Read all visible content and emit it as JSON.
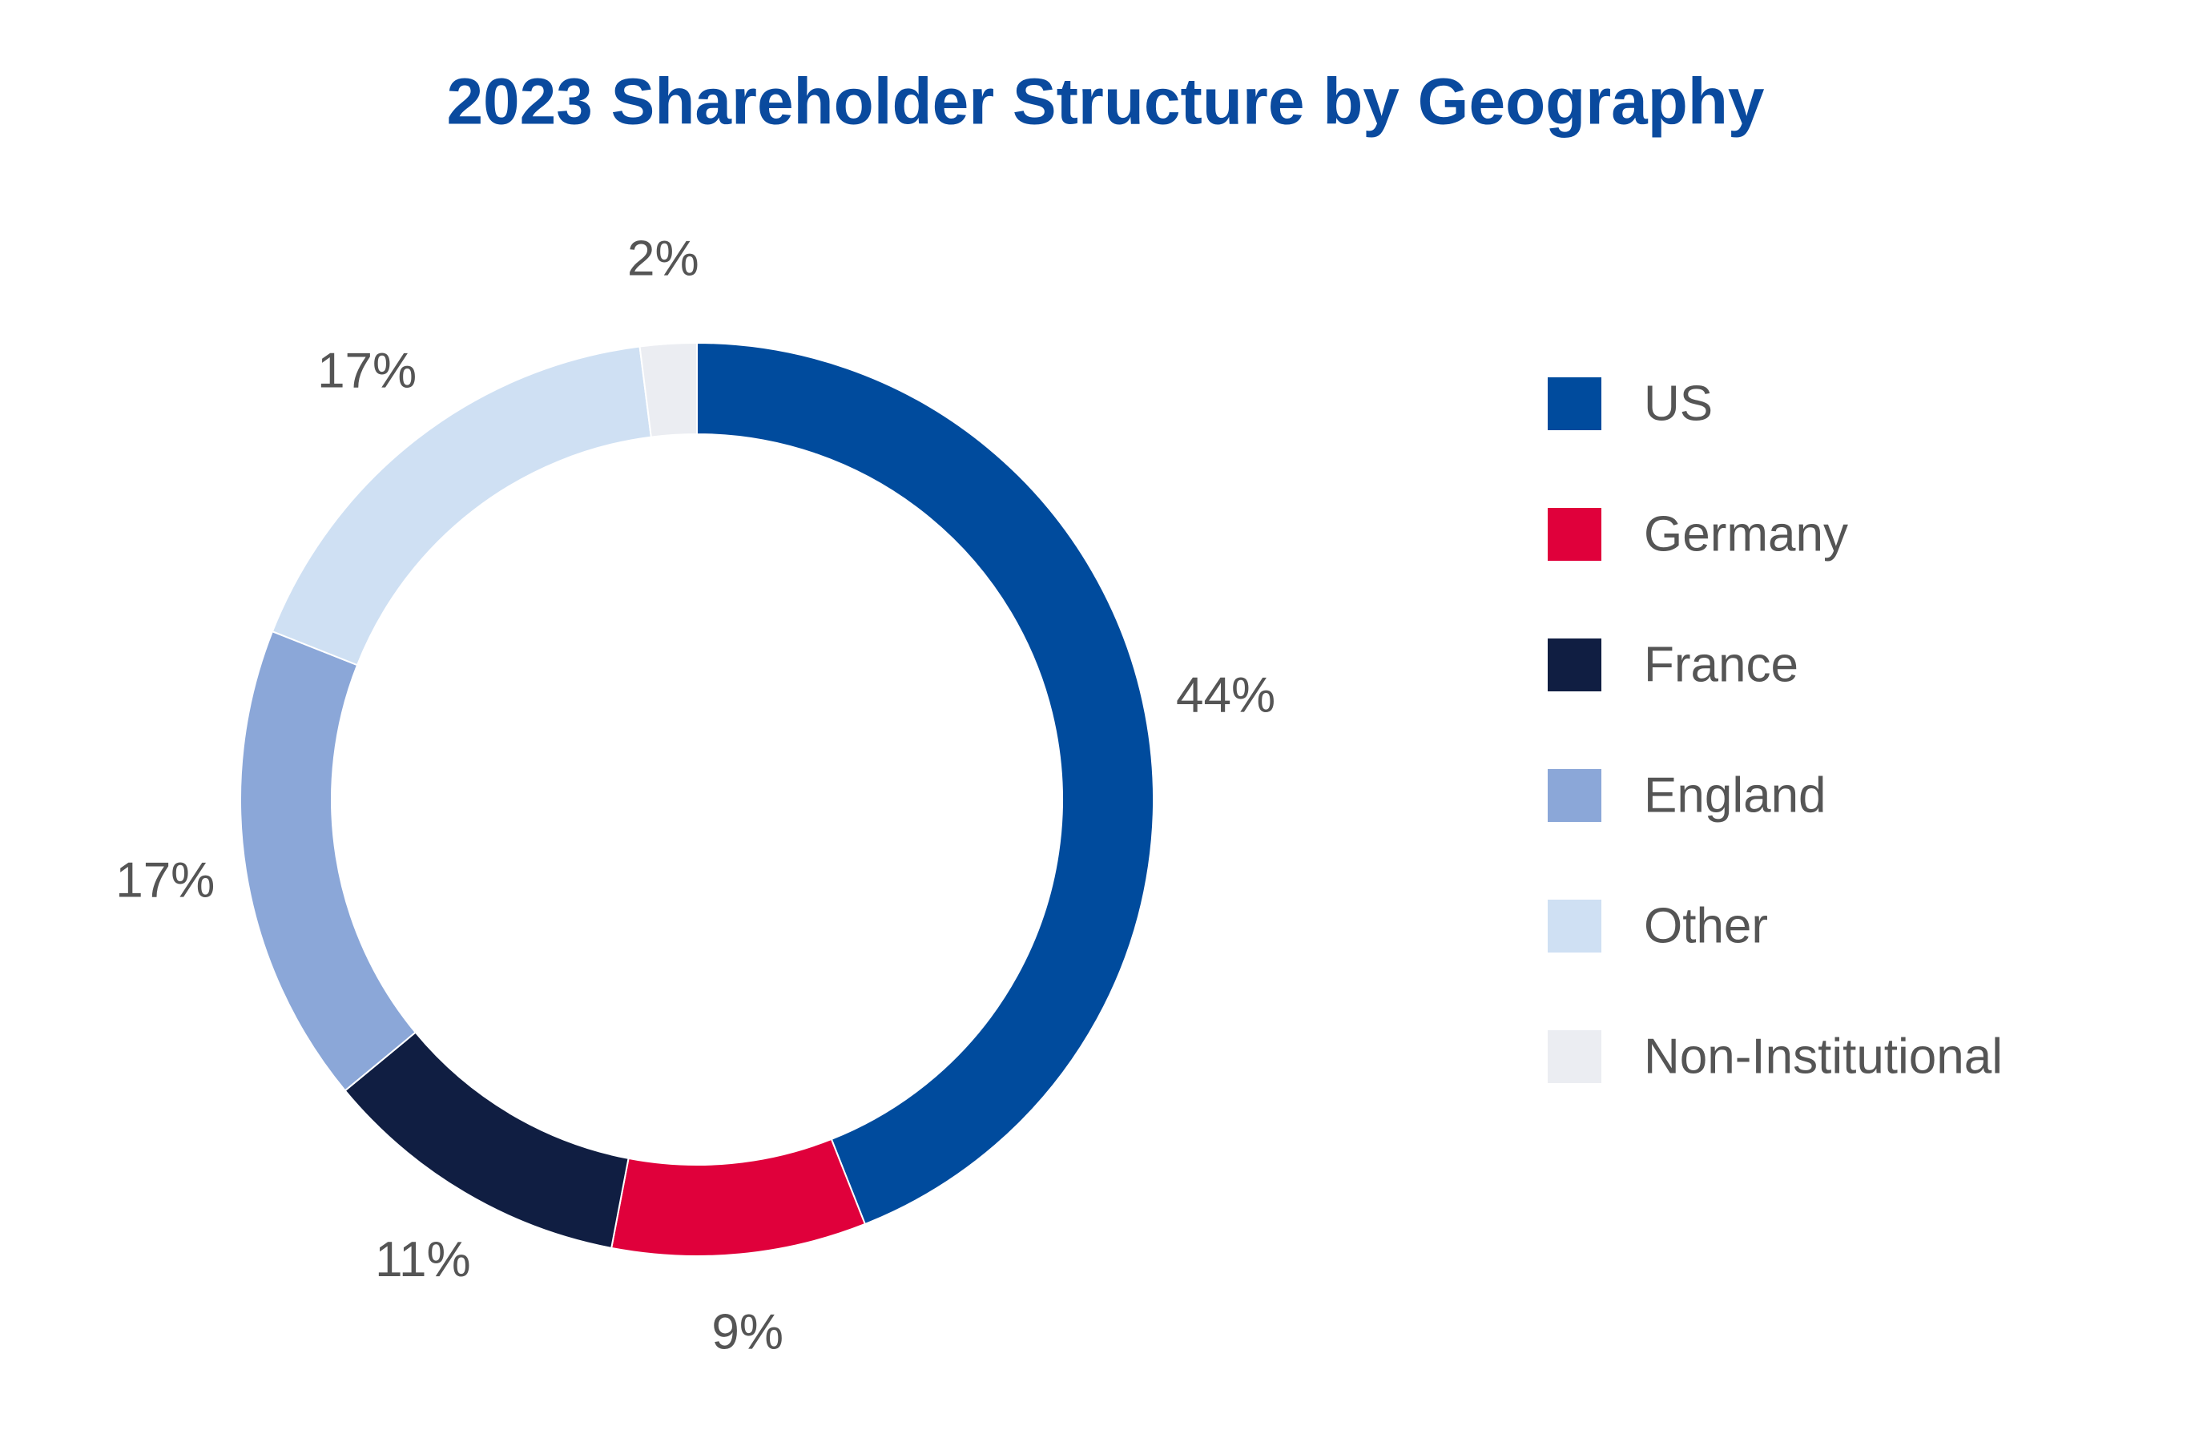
{
  "chart_data": {
    "type": "donut",
    "title": "2023 Shareholder Structure by Geography",
    "categories": [
      "US",
      "Germany",
      "France",
      "England",
      "Other",
      "Non-Institutional"
    ],
    "values": [
      44,
      9,
      11,
      17,
      17,
      2
    ],
    "value_labels": [
      "44%",
      "9%",
      "11%",
      "17%",
      "17%",
      "2%"
    ],
    "colors": [
      "#004b9d",
      "#e0003b",
      "#101e42",
      "#8ba7d8",
      "#cfe0f3",
      "#ebedf2"
    ],
    "legend": "right"
  }
}
